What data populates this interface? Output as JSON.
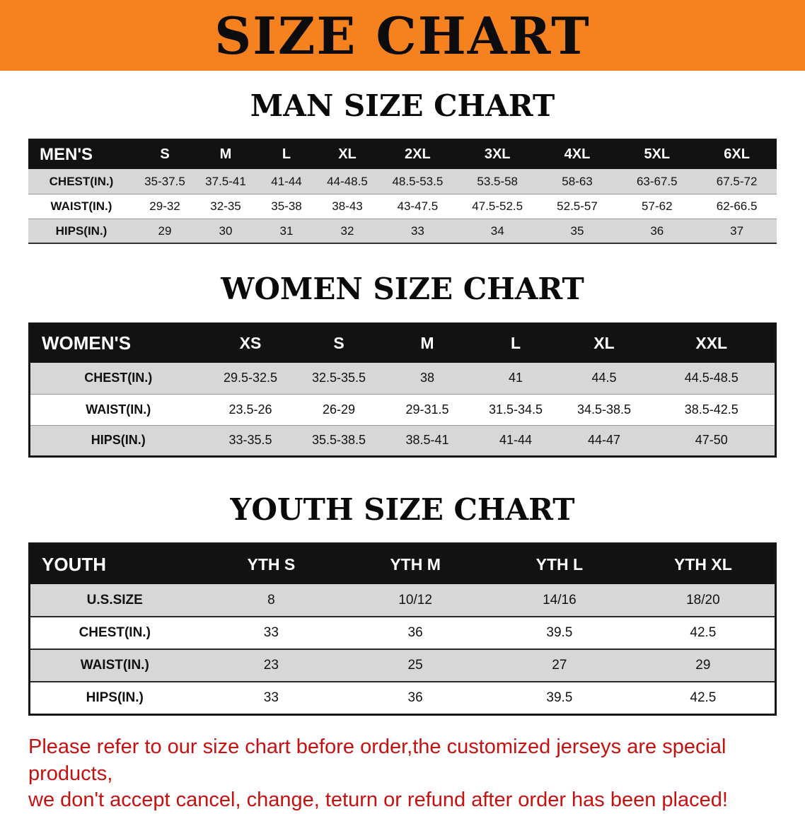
{
  "banner": {
    "title": "SIZE CHART",
    "bg_color": "#F5821E"
  },
  "colors": {
    "header_bg": "#121212",
    "row_alt_bg": "#d7d7d7",
    "disclaimer_text": "#c71111"
  },
  "men": {
    "heading": "MAN SIZE CHART",
    "corner": "MEN'S",
    "columns": [
      "S",
      "M",
      "L",
      "XL",
      "2XL",
      "3XL",
      "4XL",
      "5XL",
      "6XL"
    ],
    "rows": [
      {
        "label": "CHEST(IN.)",
        "values": [
          "35-37.5",
          "37.5-41",
          "41-44",
          "44-48.5",
          "48.5-53.5",
          "53.5-58",
          "58-63",
          "63-67.5",
          "67.5-72"
        ]
      },
      {
        "label": "WAIST(IN.)",
        "values": [
          "29-32",
          "32-35",
          "35-38",
          "38-43",
          "43-47.5",
          "47.5-52.5",
          "52.5-57",
          "57-62",
          "62-66.5"
        ]
      },
      {
        "label": "HIPS(IN.)",
        "values": [
          "29",
          "30",
          "31",
          "32",
          "33",
          "34",
          "35",
          "36",
          "37"
        ]
      }
    ]
  },
  "women": {
    "heading": "WOMEN SIZE CHART",
    "corner": "WOMEN'S",
    "columns": [
      "XS",
      "S",
      "M",
      "L",
      "XL",
      "XXL"
    ],
    "rows": [
      {
        "label": "CHEST(IN.)",
        "values": [
          "29.5-32.5",
          "32.5-35.5",
          "38",
          "41",
          "44.5",
          "44.5-48.5"
        ]
      },
      {
        "label": "WAIST(IN.)",
        "values": [
          "23.5-26",
          "26-29",
          "29-31.5",
          "31.5-34.5",
          "34.5-38.5",
          "38.5-42.5"
        ]
      },
      {
        "label": "HIPS(IN.)",
        "values": [
          "33-35.5",
          "35.5-38.5",
          "38.5-41",
          "41-44",
          "44-47",
          "47-50"
        ]
      }
    ]
  },
  "youth": {
    "heading": "YOUTH SIZE CHART",
    "corner": "YOUTH",
    "columns": [
      "YTH S",
      "YTH M",
      "YTH L",
      "YTH XL"
    ],
    "rows": [
      {
        "label": "U.S.SIZE",
        "values": [
          "8",
          "10/12",
          "14/16",
          "18/20"
        ]
      },
      {
        "label": "CHEST(IN.)",
        "values": [
          "33",
          "36",
          "39.5",
          "42.5"
        ]
      },
      {
        "label": "WAIST(IN.)",
        "values": [
          "23",
          "25",
          "27",
          "29"
        ]
      },
      {
        "label": "HIPS(IN.)",
        "values": [
          "33",
          "36",
          "39.5",
          "42.5"
        ]
      }
    ]
  },
  "disclaimer": {
    "line1": "Please refer to our size chart before order,the customized jerseys are special products,",
    "line2": "we don't accept cancel, change, teturn or refund after order has been placed!"
  }
}
